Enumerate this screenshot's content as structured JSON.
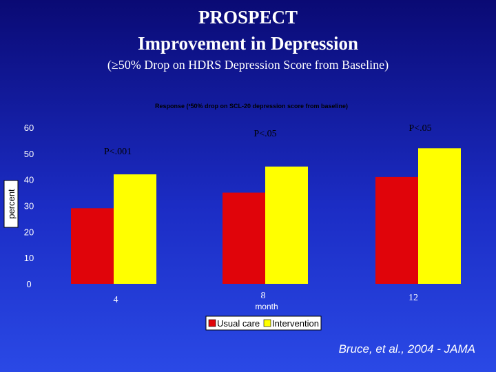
{
  "header": {
    "title_line1": "PROSPECT",
    "title_line2": "Improvement in Depression",
    "subtitle": "(≥50% Drop on HDRS Depression Score from Baseline)"
  },
  "citation": "Bruce, et al., 2004 - JAMA",
  "chart_data": {
    "type": "bar",
    "title": "Response  (³50% drop on SCL-20 depression score from baseline)",
    "xlabel": "month",
    "ylabel": "percent",
    "categories": [
      "4",
      "8",
      "12"
    ],
    "ylim": [
      0,
      60
    ],
    "yticks": [
      0,
      10,
      20,
      30,
      40,
      50,
      60
    ],
    "series": [
      {
        "name": "Usual care",
        "values": [
          29,
          35,
          41
        ],
        "color": "#e0040a"
      },
      {
        "name": "Intervention",
        "values": [
          42,
          45,
          52
        ],
        "color": "#ffff00"
      }
    ],
    "annotations": [
      "P<.001",
      "P<.05",
      "P<.05"
    ],
    "grid": false,
    "legend": "bottom"
  }
}
